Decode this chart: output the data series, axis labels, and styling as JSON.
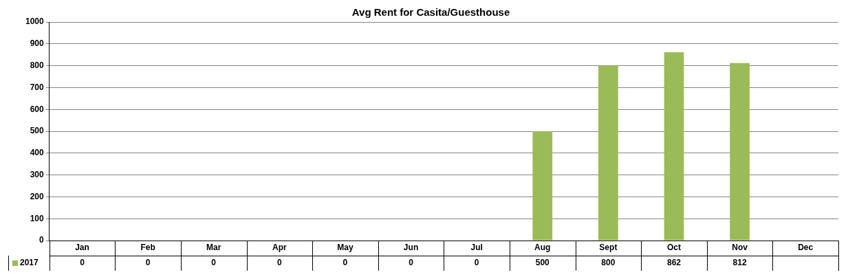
{
  "chart_data": {
    "type": "bar",
    "title": "Avg Rent for Casita/Guesthouse",
    "categories": [
      "Jan",
      "Feb",
      "Mar",
      "Apr",
      "May",
      "Jun",
      "Jul",
      "Aug",
      "Sept",
      "Oct",
      "Nov",
      "Dec"
    ],
    "series": [
      {
        "name": "2017",
        "color": "#9bbb59",
        "values": [
          0,
          0,
          0,
          0,
          0,
          0,
          0,
          500,
          800,
          862,
          812,
          null
        ]
      }
    ],
    "ylim": [
      0,
      1000
    ],
    "yticks": [
      0,
      100,
      200,
      300,
      400,
      500,
      600,
      700,
      800,
      900,
      1000
    ],
    "grid": "y",
    "legend": "bottom left",
    "data_labels": true
  }
}
